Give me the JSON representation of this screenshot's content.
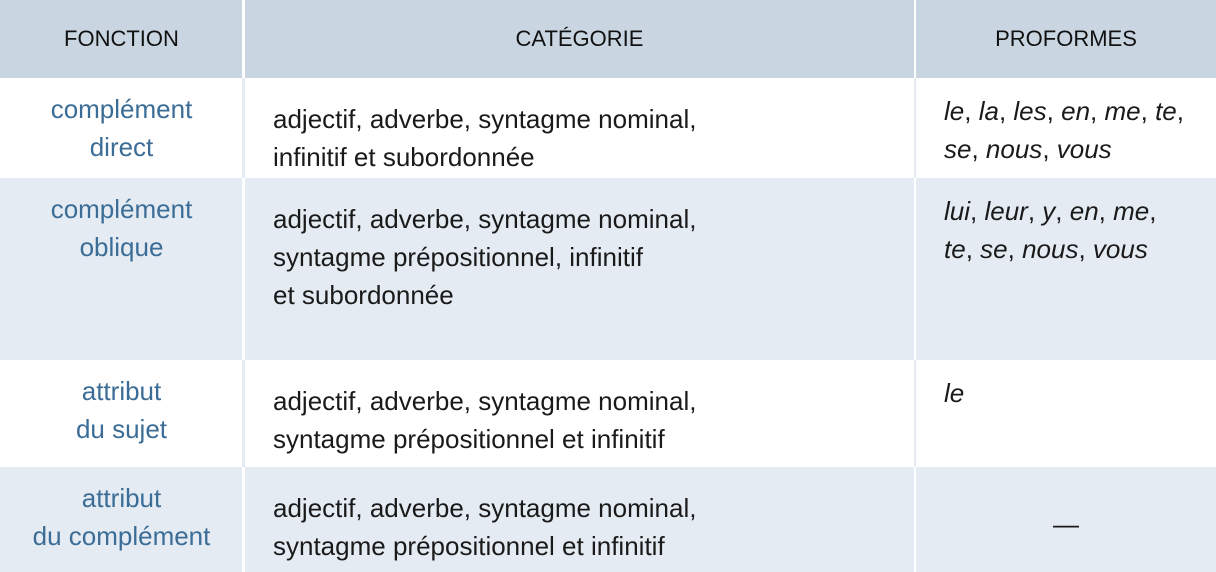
{
  "headers": {
    "fonction": "FONCTION",
    "categorie": "CATÉGORIE",
    "proformes": "PROFORMES"
  },
  "rows": [
    {
      "fonction": [
        "complément",
        "direct"
      ],
      "categorie": [
        "adjectif, adverbe, syntagme nominal,",
        "infinitif et subordonnée"
      ],
      "proformes": [
        [
          "le",
          ", ",
          "la",
          ", ",
          "les",
          ", ",
          "en",
          ", ",
          "me",
          ", ",
          "te",
          ","
        ],
        [
          "se",
          ", ",
          "nous",
          ", ",
          "vous"
        ]
      ]
    },
    {
      "fonction": [
        "complément",
        "oblique"
      ],
      "categorie": [
        "adjectif, adverbe, syntagme nominal,",
        "syntagme prépositionnel, infinitif",
        "et subordonnée"
      ],
      "proformes": [
        [
          "lui",
          ", ",
          "leur",
          ", ",
          "y",
          ", ",
          "en",
          ", ",
          "me",
          ","
        ],
        [
          "te",
          ", ",
          "se",
          ", ",
          "nous",
          ", ",
          "vous"
        ]
      ]
    },
    {
      "fonction": [
        "attribut",
        "du sujet"
      ],
      "categorie": [
        "adjectif, adverbe, syntagme nominal,",
        "syntagme prépositionnel et infinitif"
      ],
      "proformes": [
        [
          "le"
        ]
      ]
    },
    {
      "fonction": [
        "attribut",
        "du complément"
      ],
      "categorie": [
        "adjectif, adverbe, syntagme nominal,",
        "syntagme prépositionnel et infinitif"
      ],
      "proformes_dash": "—"
    }
  ]
}
